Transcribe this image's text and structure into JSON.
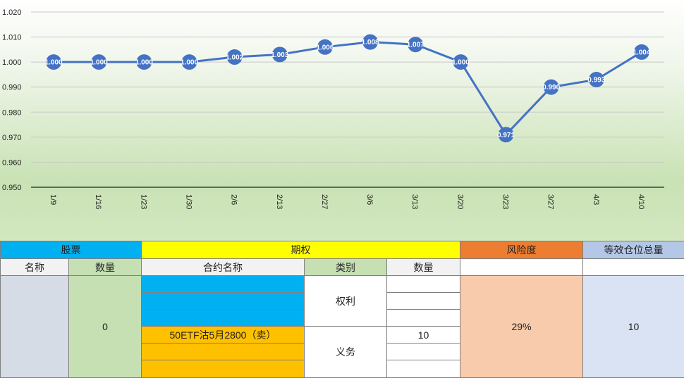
{
  "chart_data": {
    "type": "line",
    "categories": [
      "1/9",
      "1/16",
      "1/23",
      "1/30",
      "2/6",
      "2/13",
      "2/27",
      "3/6",
      "3/13",
      "3/20",
      "3/23",
      "3/27",
      "4/3",
      "4/10"
    ],
    "values": [
      1.0,
      1.0,
      1.0,
      1.0,
      1.002,
      1.003,
      1.006,
      1.008,
      1.007,
      1.0,
      0.971,
      0.99,
      0.993,
      1.004
    ],
    "point_labels": [
      "1.000",
      "1.000",
      "1.000",
      "1.000",
      "1.002",
      "1.003",
      "1.006",
      "1.008",
      "1.007",
      "1.000",
      "0.971",
      "0.990",
      "0.993",
      "1.004"
    ],
    "y_ticks": [
      "0.950",
      "0.960",
      "0.970",
      "0.980",
      "0.990",
      "1.000",
      "1.010",
      "1.020"
    ],
    "ylim": [
      0.95,
      1.02
    ],
    "title": "",
    "xlabel": "",
    "ylabel": "",
    "grid": true,
    "legend": "none",
    "line_color": "#4472c4",
    "marker_color": "#4472c4"
  },
  "table": {
    "headers": {
      "stock": "股票",
      "option": "期权",
      "risk": "风险度",
      "equiv": "等效仓位总量"
    },
    "subheaders": {
      "name": "名称",
      "qty": "数量",
      "contract": "合约名称",
      "category": "类别",
      "opt_qty": "数量"
    },
    "stock_name": "",
    "stock_qty": "0",
    "rights_label": "权利",
    "obligation_label": "义务",
    "contracts": [
      "",
      "",
      "",
      "50ETF沽5月2800（卖）",
      "",
      ""
    ],
    "opt_qtys": [
      "",
      "",
      "",
      "10",
      "",
      ""
    ],
    "risk_value": "29%",
    "equiv_value": "10"
  }
}
